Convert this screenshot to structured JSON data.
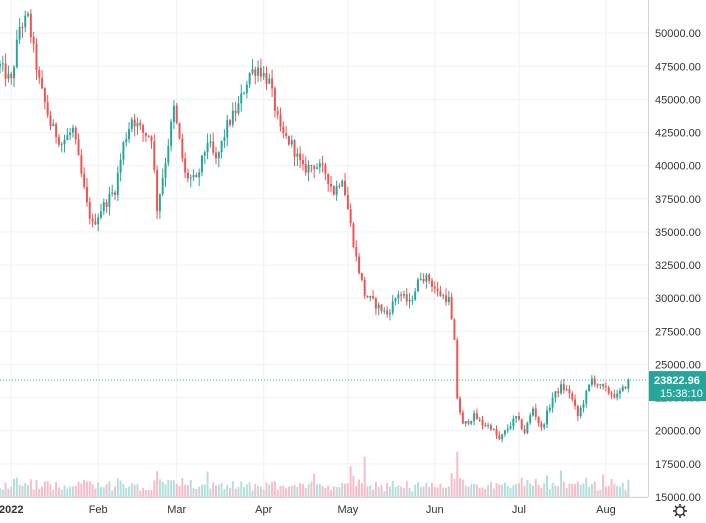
{
  "chart_data": {
    "type": "candlestick",
    "grid": true,
    "ylim": [
      15000,
      52500
    ],
    "y_ticks": [
      "50000.00",
      "47500.00",
      "45000.00",
      "42500.00",
      "40000.00",
      "37500.00",
      "35000.00",
      "32500.00",
      "30000.00",
      "27500.00",
      "25000.00",
      "22500.00",
      "20000.00",
      "17500.00",
      "15000.00"
    ],
    "y_tick_values": [
      50000,
      47500,
      45000,
      42500,
      40000,
      37500,
      35000,
      32500,
      30000,
      27500,
      25000,
      22500,
      20000,
      17500,
      15000
    ],
    "x_ticks": [
      {
        "label": "2022",
        "day": 0
      },
      {
        "label": "Feb",
        "day": 31
      },
      {
        "label": "Mar",
        "day": 59
      },
      {
        "label": "Apr",
        "day": 90
      },
      {
        "label": "May",
        "day": 120
      },
      {
        "label": "Jun",
        "day": 151
      },
      {
        "label": "Jul",
        "day": 181
      },
      {
        "label": "Aug",
        "day": 212
      }
    ],
    "x_range_days": [
      -4,
      227
    ],
    "last_price": {
      "value": 23822.96,
      "label": "23822.96",
      "countdown": "15:38:10"
    },
    "colors": {
      "up": "#26a69a",
      "down": "#ef5350",
      "vol_up": "#b2dfdb",
      "vol_down": "#f8bbc8",
      "price_tag": "#26a69a"
    },
    "close_anchors": [
      [
        -4,
        47500
      ],
      [
        0,
        46300
      ],
      [
        3,
        50500
      ],
      [
        6,
        51100
      ],
      [
        10,
        46300
      ],
      [
        14,
        43100
      ],
      [
        18,
        41700
      ],
      [
        22,
        42700
      ],
      [
        27,
        37000
      ],
      [
        29,
        35500
      ],
      [
        32,
        36700
      ],
      [
        37,
        38200
      ],
      [
        40,
        41600
      ],
      [
        43,
        43600
      ],
      [
        47,
        42500
      ],
      [
        50,
        42200
      ],
      [
        52,
        36800
      ],
      [
        55,
        40400
      ],
      [
        58,
        44300
      ],
      [
        62,
        39300
      ],
      [
        66,
        38800
      ],
      [
        70,
        41900
      ],
      [
        73,
        40300
      ],
      [
        77,
        43000
      ],
      [
        81,
        44500
      ],
      [
        85,
        47000
      ],
      [
        88,
        47400
      ],
      [
        92,
        46300
      ],
      [
        96,
        42500
      ],
      [
        100,
        41600
      ],
      [
        104,
        39700
      ],
      [
        108,
        40100
      ],
      [
        112,
        39500
      ],
      [
        115,
        38000
      ],
      [
        118,
        39200
      ],
      [
        123,
        33000
      ],
      [
        126,
        30300
      ],
      [
        130,
        29500
      ],
      [
        134,
        28800
      ],
      [
        138,
        30400
      ],
      [
        142,
        29600
      ],
      [
        146,
        31700
      ],
      [
        149,
        31400
      ],
      [
        152,
        30400
      ],
      [
        156,
        29900
      ],
      [
        158,
        26600
      ],
      [
        159,
        22500
      ],
      [
        161,
        20400
      ],
      [
        165,
        21100
      ],
      [
        168,
        20500
      ],
      [
        171,
        20300
      ],
      [
        174,
        19300
      ],
      [
        177,
        20200
      ],
      [
        180,
        21000
      ],
      [
        183,
        19900
      ],
      [
        186,
        21700
      ],
      [
        189,
        20100
      ],
      [
        193,
        22500
      ],
      [
        196,
        23300
      ],
      [
        199,
        22900
      ],
      [
        202,
        21100
      ],
      [
        205,
        22800
      ],
      [
        207,
        23900
      ],
      [
        210,
        23300
      ],
      [
        214,
        22800
      ],
      [
        216,
        22600
      ],
      [
        219,
        23400
      ],
      [
        220,
        23823
      ]
    ],
    "volume_scale": [
      0,
      20000
    ]
  }
}
